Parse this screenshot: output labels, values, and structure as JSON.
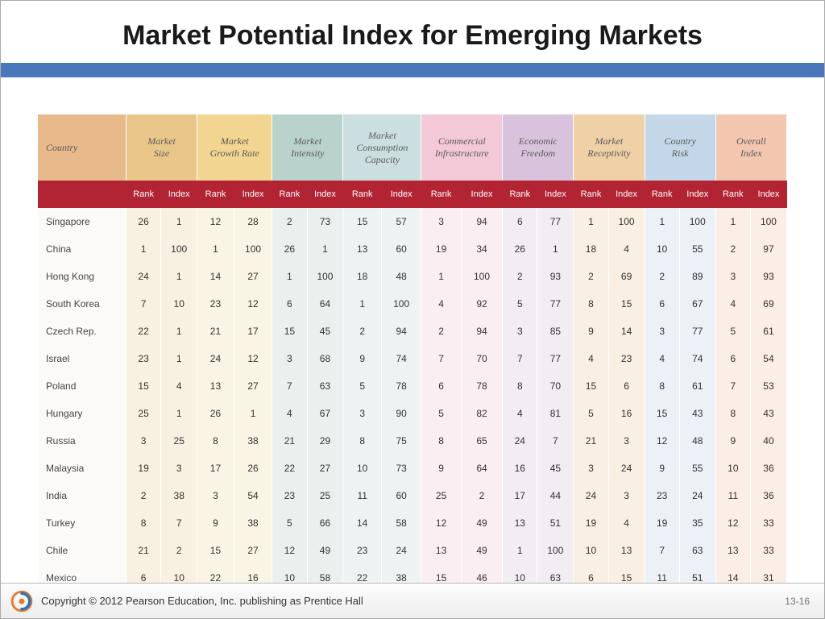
{
  "title": "Market Potential Index for Emerging Markets",
  "accent_bar_color": "#4a77bb",
  "subheader_bg": "#b22434",
  "footer": {
    "copyright": "Copyright © 2012 Pearson Education, Inc. publishing as Prentice Hall",
    "page": "13-16"
  },
  "logo_colors": {
    "outer": "#e37a2d",
    "inner": "#2d72b8"
  },
  "table": {
    "country_header": "Country",
    "groups": [
      {
        "label": "Market\nSize",
        "bg": "#e9c78a"
      },
      {
        "label": "Market\nGrowth Rate",
        "bg": "#f2d591"
      },
      {
        "label": "Market\nIntensity",
        "bg": "#b9d2cb"
      },
      {
        "label": "Market\nConsumption\nCapacity",
        "bg": "#cbdfe0"
      },
      {
        "label": "Commercial\nInfrastructure",
        "bg": "#f3c9d7"
      },
      {
        "label": "Economic\nFreedom",
        "bg": "#d9c3dc"
      },
      {
        "label": "Market\nReceptivity",
        "bg": "#f0d0a6"
      },
      {
        "label": "Country\nRisk",
        "bg": "#c3d7e9"
      },
      {
        "label": "Overall\nIndex",
        "bg": "#f3c6b0"
      }
    ],
    "country_header_bg": "#e8b98b",
    "body_bg_country": "#fbfaf8",
    "body_bgs": [
      "#f8f1e1",
      "#f8f1e1",
      "#faf4e4",
      "#faf4e4",
      "#eaf0ee",
      "#eaf0ee",
      "#edf3f3",
      "#edf3f3",
      "#fbeef3",
      "#fbeef3",
      "#f2ecf3",
      "#f2ecf3",
      "#f9f0e3",
      "#f9f0e3",
      "#ebf1f7",
      "#ebf1f7",
      "#faeee6",
      "#faeee6"
    ],
    "sub_headers": [
      "Rank",
      "Index"
    ],
    "rows": [
      {
        "country": "Singapore",
        "vals": [
          26,
          1,
          12,
          28,
          2,
          73,
          15,
          57,
          3,
          94,
          6,
          77,
          1,
          100,
          1,
          100,
          1,
          100
        ]
      },
      {
        "country": "China",
        "vals": [
          1,
          100,
          1,
          100,
          26,
          1,
          13,
          60,
          19,
          34,
          26,
          1,
          18,
          4,
          10,
          55,
          2,
          97
        ]
      },
      {
        "country": "Hong Kong",
        "vals": [
          24,
          1,
          14,
          27,
          1,
          100,
          18,
          48,
          1,
          100,
          2,
          93,
          2,
          69,
          2,
          89,
          3,
          93
        ]
      },
      {
        "country": "South Korea",
        "vals": [
          7,
          10,
          23,
          12,
          6,
          64,
          1,
          100,
          4,
          92,
          5,
          77,
          8,
          15,
          6,
          67,
          4,
          69
        ]
      },
      {
        "country": "Czech Rep.",
        "vals": [
          22,
          1,
          21,
          17,
          15,
          45,
          2,
          94,
          2,
          94,
          3,
          85,
          9,
          14,
          3,
          77,
          5,
          61
        ]
      },
      {
        "country": "Israel",
        "vals": [
          23,
          1,
          24,
          12,
          3,
          68,
          9,
          74,
          7,
          70,
          7,
          77,
          4,
          23,
          4,
          74,
          6,
          54
        ]
      },
      {
        "country": "Poland",
        "vals": [
          15,
          4,
          13,
          27,
          7,
          63,
          5,
          78,
          6,
          78,
          8,
          70,
          15,
          6,
          8,
          61,
          7,
          53
        ]
      },
      {
        "country": "Hungary",
        "vals": [
          25,
          1,
          26,
          1,
          4,
          67,
          3,
          90,
          5,
          82,
          4,
          81,
          5,
          16,
          15,
          43,
          8,
          43
        ]
      },
      {
        "country": "Russia",
        "vals": [
          3,
          25,
          8,
          38,
          21,
          29,
          8,
          75,
          8,
          65,
          24,
          7,
          21,
          3,
          12,
          48,
          9,
          40
        ]
      },
      {
        "country": "Malaysia",
        "vals": [
          19,
          3,
          17,
          26,
          22,
          27,
          10,
          73,
          9,
          64,
          16,
          45,
          3,
          24,
          9,
          55,
          10,
          36
        ]
      },
      {
        "country": "India",
        "vals": [
          2,
          38,
          3,
          54,
          23,
          25,
          11,
          60,
          25,
          2,
          17,
          44,
          24,
          3,
          23,
          24,
          11,
          36
        ]
      },
      {
        "country": "Turkey",
        "vals": [
          8,
          7,
          9,
          38,
          5,
          66,
          14,
          58,
          12,
          49,
          13,
          51,
          19,
          4,
          19,
          35,
          12,
          33
        ]
      },
      {
        "country": "Chile",
        "vals": [
          21,
          2,
          15,
          27,
          12,
          49,
          23,
          24,
          13,
          49,
          1,
          100,
          10,
          13,
          7,
          63,
          13,
          33
        ]
      },
      {
        "country": "Mexico",
        "vals": [
          6,
          10,
          22,
          16,
          10,
          58,
          22,
          38,
          15,
          46,
          10,
          63,
          6,
          15,
          11,
          51,
          14,
          31
        ]
      }
    ]
  }
}
